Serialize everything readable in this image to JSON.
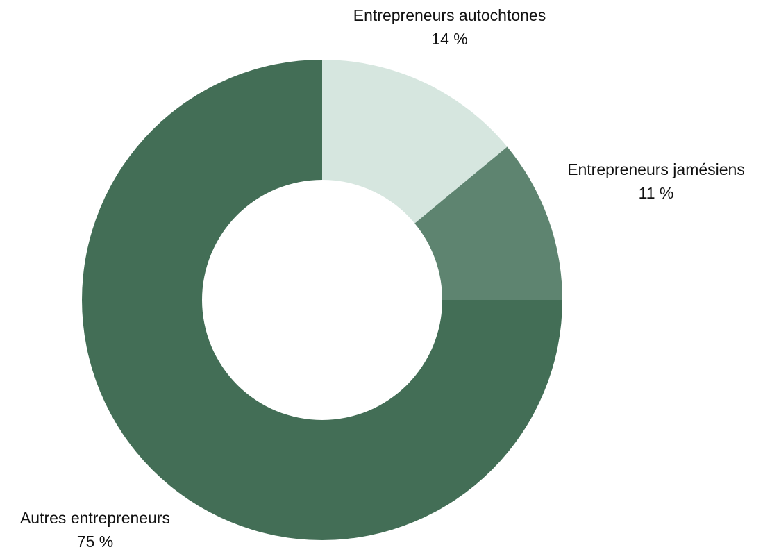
{
  "chart_data": {
    "type": "pie",
    "donut": true,
    "title": "",
    "slices": [
      {
        "label": "Entrepreneurs autochtones",
        "value": 14,
        "value_label": "14 %",
        "color": "#d6e6df"
      },
      {
        "label": "Entrepreneurs jamésiens",
        "value": 11,
        "value_label": "11 %",
        "color": "#5e8470"
      },
      {
        "label": "Autres entrepreneurs",
        "value": 75,
        "value_label": "75 %",
        "color": "#436e56"
      }
    ],
    "start_angle": "12 o'clock",
    "direction": "clockwise"
  }
}
